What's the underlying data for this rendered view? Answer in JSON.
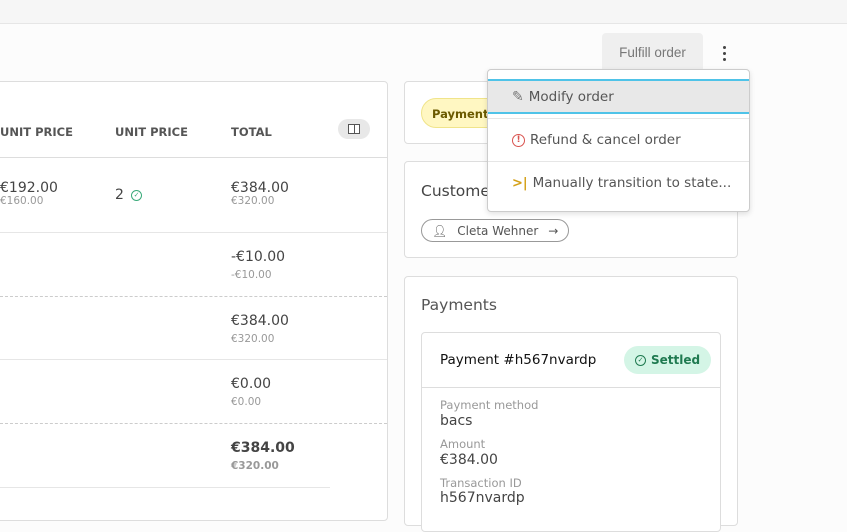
{
  "header": {
    "fulfill_label": "Fulfill order"
  },
  "lines_table": {
    "headers": [
      "UNIT PRICE",
      "UNIT PRICE",
      "TOTAL"
    ],
    "rows": [
      {
        "unit_price": "€192.00",
        "unit_price_sub": "€160.00",
        "quantity": "2",
        "total": "€384.00",
        "total_sub": "€320.00"
      },
      {
        "total": "-€10.00",
        "total_sub": "-€10.00"
      },
      {
        "total": "€384.00",
        "total_sub": "€320.00"
      },
      {
        "total": "€0.00",
        "total_sub": "€0.00"
      },
      {
        "total": "€384.00",
        "total_sub": "€320.00"
      }
    ]
  },
  "state_card": {
    "badge": "Payment s"
  },
  "customer_card": {
    "title": "Custome",
    "customer_name": "Cleta Wehner"
  },
  "payments_card": {
    "title": "Payments",
    "payment": {
      "title": "Payment #h567nvardp",
      "status": "Settled",
      "fields": [
        {
          "label": "Payment method",
          "value": "bacs"
        },
        {
          "label": "Amount",
          "value": "€384.00"
        },
        {
          "label": "Transaction ID",
          "value": "h567nvardp"
        }
      ]
    }
  },
  "menu": {
    "items": [
      {
        "label": "Modify order",
        "icon": "pencil-icon"
      },
      {
        "label": "Refund & cancel order",
        "icon": "alert-circle-icon"
      },
      {
        "label": "Manually transition to state...",
        "icon": "step-forward-icon"
      }
    ]
  },
  "colors": {
    "highlight": "#4fc3e8",
    "settled_bg": "#d4f5e6",
    "settled_fg": "#1f7a50",
    "payment_badge_bg": "#fff7c2",
    "danger": "#d9534f",
    "warning": "#d4a017"
  }
}
